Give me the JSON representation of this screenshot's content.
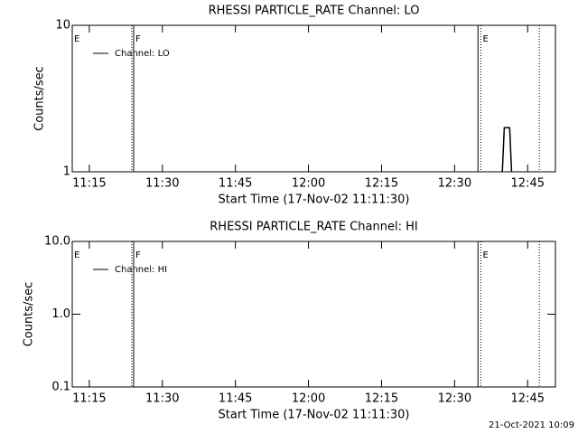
{
  "chart_data": [
    {
      "type": "line",
      "title": "RHESSI PARTICLE_RATE Channel: LO",
      "ylabel": "Counts/sec",
      "xlabel": "Start Time (17-Nov-02 11:11:30)",
      "log_y": true,
      "legend": "top-left",
      "xlim": [
        671.5,
        770.7
      ],
      "xticks": [
        {
          "value": 675,
          "label": "11:15"
        },
        {
          "value": 690,
          "label": "11:30"
        },
        {
          "value": 705,
          "label": "11:45"
        },
        {
          "value": 720,
          "label": "12:00"
        },
        {
          "value": 735,
          "label": "12:15"
        },
        {
          "value": 750,
          "label": "12:30"
        },
        {
          "value": 765,
          "label": "12:45"
        }
      ],
      "ylim": [
        1,
        10
      ],
      "yticks": [
        1,
        10
      ],
      "series": [
        {
          "name": "Channel: LO",
          "color": "#000000",
          "x": [
            759.8,
            760.2,
            761.3,
            761.7
          ],
          "values": [
            1,
            2,
            2,
            1
          ]
        }
      ],
      "markers": [
        {
          "x": 671.5,
          "label": "E",
          "style": "solid"
        },
        {
          "x": 683.7,
          "style": "dotted"
        },
        {
          "x": 684.1,
          "label": "F",
          "style": "solid"
        },
        {
          "x": 754.8,
          "style": "solid"
        },
        {
          "x": 755.4,
          "label": "E",
          "style": "dotted"
        },
        {
          "x": 767.4,
          "style": "dotted"
        }
      ]
    },
    {
      "type": "line",
      "title": "RHESSI PARTICLE_RATE Channel: HI",
      "ylabel": "Counts/sec",
      "xlabel": "Start Time (17-Nov-02 11:11:30)",
      "log_y": true,
      "legend": "top-left",
      "xlim": [
        671.5,
        770.7
      ],
      "xticks": [
        {
          "value": 675,
          "label": "11:15"
        },
        {
          "value": 690,
          "label": "11:30"
        },
        {
          "value": 705,
          "label": "11:45"
        },
        {
          "value": 720,
          "label": "12:00"
        },
        {
          "value": 735,
          "label": "12:15"
        },
        {
          "value": 750,
          "label": "12:30"
        },
        {
          "value": 765,
          "label": "12:45"
        }
      ],
      "ylim": [
        0.1,
        10
      ],
      "yticks": [
        0.1,
        {
          "value": 1,
          "label": "1.0"
        },
        {
          "value": 10,
          "label": "10.0"
        }
      ],
      "series": [
        {
          "name": "Channel: HI",
          "color": "#000000",
          "x": [],
          "values": []
        }
      ],
      "markers": [
        {
          "x": 671.5,
          "label": "E",
          "style": "solid"
        },
        {
          "x": 683.7,
          "style": "dotted"
        },
        {
          "x": 684.1,
          "label": "F",
          "style": "solid"
        },
        {
          "x": 754.8,
          "style": "solid"
        },
        {
          "x": 755.4,
          "label": "E",
          "style": "dotted"
        },
        {
          "x": 767.4,
          "style": "dotted"
        }
      ]
    }
  ],
  "footer": "21-Oct-2021 10:09"
}
